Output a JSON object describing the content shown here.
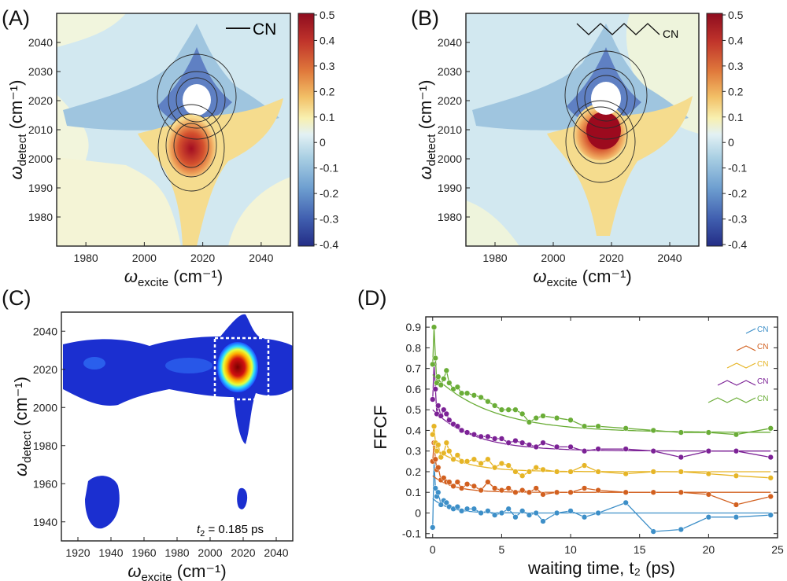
{
  "panels": {
    "A": {
      "label": "(A)",
      "molecule_label": "CN"
    },
    "B": {
      "label": "(B)",
      "molecule_label": "CN"
    },
    "C": {
      "label": "(C)",
      "annotation_t": "t",
      "annotation_sub": "2",
      "annotation_rest": " = 0.185 ps"
    },
    "D": {
      "label": "(D)"
    }
  },
  "colors": {
    "background_2d": "#d2e8f0",
    "positive_peak": "#9c0a1e",
    "negative_peak": "#243a8c",
    "ftir_blue": "#0d1fa6",
    "series": [
      "#3d8fc8",
      "#d2601f",
      "#e6b526",
      "#7c2296",
      "#6aad37"
    ]
  },
  "chart_data": [
    {
      "id": "A",
      "type": "heatmap",
      "title": "",
      "xlabel_main": "ω",
      "xlabel_sub": "excite",
      "xlabel_unit": " (cm⁻¹)",
      "ylabel_main": "ω",
      "ylabel_sub": "detect",
      "ylabel_unit": " (cm⁻¹)",
      "xlim": [
        1970,
        2050
      ],
      "ylim": [
        1970,
        2050
      ],
      "xticks": [
        1980,
        2000,
        2020,
        2040
      ],
      "yticks": [
        1980,
        1990,
        2000,
        2010,
        2020,
        2030,
        2040
      ],
      "colorbar": {
        "min": -0.4,
        "max": 0.5,
        "ticks": [
          "0.5",
          "0.4",
          "0.3",
          "0.2",
          "0.1",
          "0",
          "-0.1",
          "-0.2",
          "-0.3",
          "-0.4"
        ]
      },
      "negative_peak": {
        "x": 2020,
        "y": 2022
      },
      "positive_peak": {
        "x": 2018,
        "y": 2005
      }
    },
    {
      "id": "B",
      "type": "heatmap",
      "xlabel_main": "ω",
      "xlabel_sub": "excite",
      "xlabel_unit": " (cm⁻¹)",
      "ylabel_main": "ω",
      "ylabel_sub": "detect",
      "ylabel_unit": " (cm⁻¹)",
      "xlim": [
        1970,
        2050
      ],
      "ylim": [
        1970,
        2050
      ],
      "xticks": [
        1980,
        2000,
        2020,
        2040
      ],
      "yticks": [
        1980,
        1990,
        2000,
        2010,
        2020,
        2030,
        2040
      ],
      "colorbar": {
        "min": -0.4,
        "max": 0.5,
        "ticks": [
          "0.5",
          "0.4",
          "0.3",
          "0.2",
          "0.1",
          "0",
          "-0.1",
          "-0.2",
          "-0.3",
          "-0.4"
        ]
      },
      "negative_peak": {
        "x": 2018,
        "y": 2023
      },
      "positive_peak": {
        "x": 2017,
        "y": 2006
      }
    },
    {
      "id": "C",
      "type": "heatmap",
      "xlabel_main": "ω",
      "xlabel_sub": "excite",
      "xlabel_unit": " (cm⁻¹)",
      "ylabel_main": "ω",
      "ylabel_sub": "detect",
      "ylabel_unit": " (cm⁻¹)",
      "xlim": [
        1910,
        2050
      ],
      "ylim": [
        1930,
        2050
      ],
      "xticks": [
        1920,
        1940,
        1960,
        1980,
        2000,
        2020,
        2040
      ],
      "yticks": [
        1940,
        1960,
        1980,
        2000,
        2020,
        2040
      ],
      "peak": {
        "x": 2020,
        "y": 2021
      },
      "dashed_box": {
        "x": [
          2004,
          2036
        ],
        "y": [
          2004,
          2037
        ]
      }
    },
    {
      "id": "D",
      "type": "line",
      "xlabel": "waiting time, t₂ (ps)",
      "ylabel": "FFCF",
      "xlim": [
        -0.5,
        25
      ],
      "ylim": [
        -0.12,
        0.95
      ],
      "xticks": [
        0,
        5,
        10,
        15,
        20,
        25
      ],
      "yticks": [
        -0.1,
        0,
        0.1,
        0.2,
        0.3,
        0.4,
        0.5,
        0.6,
        0.7,
        0.8,
        0.9
      ],
      "legend_label": "CN",
      "series": [
        {
          "name": "CN (n=0)",
          "offset": 0,
          "x": [
            0,
            0.1,
            0.2,
            0.3,
            0.4,
            0.6,
            0.8,
            1,
            1.2,
            1.5,
            1.8,
            2.1,
            2.5,
            3,
            3.5,
            4,
            4.5,
            5,
            5.5,
            6,
            6.5,
            7,
            7.5,
            8,
            9,
            10,
            11,
            12,
            14,
            16,
            18,
            20,
            22,
            24.5
          ],
          "y": [
            -0.07,
            0.25,
            0.12,
            0.08,
            0.1,
            0.04,
            0.06,
            0.05,
            0.03,
            0.02,
            0.03,
            0.01,
            0.02,
            0.02,
            0.0,
            0.01,
            -0.01,
            0.0,
            0.02,
            -0.02,
            0.01,
            -0.01,
            0.0,
            -0.04,
            0.0,
            0.01,
            -0.02,
            0.0,
            0.05,
            -0.09,
            -0.08,
            -0.02,
            -0.02,
            -0.01
          ],
          "fit": {
            "a": 0.07,
            "tau": 1.2,
            "c": 0.0
          }
        },
        {
          "name": "CN (n=1)",
          "offset": 0.1,
          "x": [
            0,
            0.1,
            0.2,
            0.3,
            0.4,
            0.6,
            0.8,
            1,
            1.2,
            1.5,
            1.8,
            2.1,
            2.5,
            3,
            3.5,
            4,
            4.5,
            5,
            5.5,
            6,
            6.5,
            7,
            7.5,
            8,
            9,
            10,
            11,
            12,
            14,
            16,
            18,
            20,
            22,
            24.5
          ],
          "y": [
            0.25,
            0.34,
            0.26,
            0.21,
            0.22,
            0.16,
            0.17,
            0.15,
            0.15,
            0.13,
            0.15,
            0.12,
            0.14,
            0.13,
            0.11,
            0.15,
            0.12,
            0.11,
            0.12,
            0.1,
            0.11,
            0.1,
            0.12,
            0.09,
            0.1,
            0.1,
            0.12,
            0.11,
            0.1,
            0.1,
            0.1,
            0.09,
            0.04,
            0.08
          ],
          "fit": {
            "a": 0.08,
            "tau": 1.5,
            "c": 0.1
          }
        },
        {
          "name": "CN (n=2)",
          "offset": 0.2,
          "x": [
            0,
            0.1,
            0.2,
            0.3,
            0.4,
            0.6,
            0.8,
            1,
            1.2,
            1.5,
            1.8,
            2.1,
            2.5,
            3,
            3.5,
            4,
            4.5,
            5,
            5.5,
            6,
            6.5,
            7,
            7.5,
            8,
            9,
            10,
            11,
            12,
            14,
            16,
            18,
            20,
            22,
            24.5
          ],
          "y": [
            0.38,
            0.42,
            0.34,
            0.3,
            0.33,
            0.27,
            0.29,
            0.34,
            0.3,
            0.26,
            0.28,
            0.25,
            0.25,
            0.26,
            0.24,
            0.26,
            0.22,
            0.24,
            0.23,
            0.2,
            0.18,
            0.2,
            0.22,
            0.21,
            0.2,
            0.2,
            0.23,
            0.2,
            0.19,
            0.2,
            0.2,
            0.19,
            0.18,
            0.17
          ],
          "fit": {
            "a": 0.12,
            "tau": 2.2,
            "c": 0.2
          }
        },
        {
          "name": "CN (n=3)",
          "offset": 0.3,
          "x": [
            0,
            0.1,
            0.2,
            0.3,
            0.4,
            0.6,
            0.8,
            1,
            1.2,
            1.5,
            1.8,
            2.1,
            2.5,
            3,
            3.5,
            4,
            4.5,
            5,
            5.5,
            6,
            6.5,
            7,
            7.5,
            8,
            9,
            10,
            11,
            12,
            14,
            16,
            18,
            20,
            22,
            24.5
          ],
          "y": [
            0.55,
            0.72,
            0.6,
            0.48,
            0.52,
            0.47,
            0.5,
            0.48,
            0.45,
            0.43,
            0.42,
            0.4,
            0.39,
            0.38,
            0.37,
            0.37,
            0.36,
            0.36,
            0.34,
            0.35,
            0.34,
            0.33,
            0.32,
            0.34,
            0.32,
            0.32,
            0.3,
            0.31,
            0.31,
            0.3,
            0.27,
            0.3,
            0.3,
            0.27
          ],
          "fit": {
            "a": 0.2,
            "tau": 3.0,
            "c": 0.3
          }
        },
        {
          "name": "CN (n=4)",
          "offset": 0.4,
          "x": [
            0,
            0.1,
            0.2,
            0.3,
            0.4,
            0.6,
            0.8,
            1,
            1.2,
            1.5,
            1.8,
            2.1,
            2.5,
            3,
            3.5,
            4,
            4.5,
            5,
            5.5,
            6,
            6.5,
            7,
            7.5,
            8,
            9,
            10,
            11,
            12,
            14,
            16,
            18,
            20,
            22,
            24.5
          ],
          "y": [
            0.72,
            0.9,
            0.75,
            0.63,
            0.66,
            0.62,
            0.65,
            0.69,
            0.63,
            0.6,
            0.61,
            0.58,
            0.58,
            0.57,
            0.56,
            0.54,
            0.52,
            0.5,
            0.5,
            0.5,
            0.48,
            0.44,
            0.46,
            0.47,
            0.46,
            0.45,
            0.42,
            0.42,
            0.41,
            0.4,
            0.39,
            0.39,
            0.38,
            0.41
          ],
          "fit": {
            "a": 0.28,
            "tau": 4.2,
            "c": 0.39
          }
        }
      ]
    }
  ]
}
